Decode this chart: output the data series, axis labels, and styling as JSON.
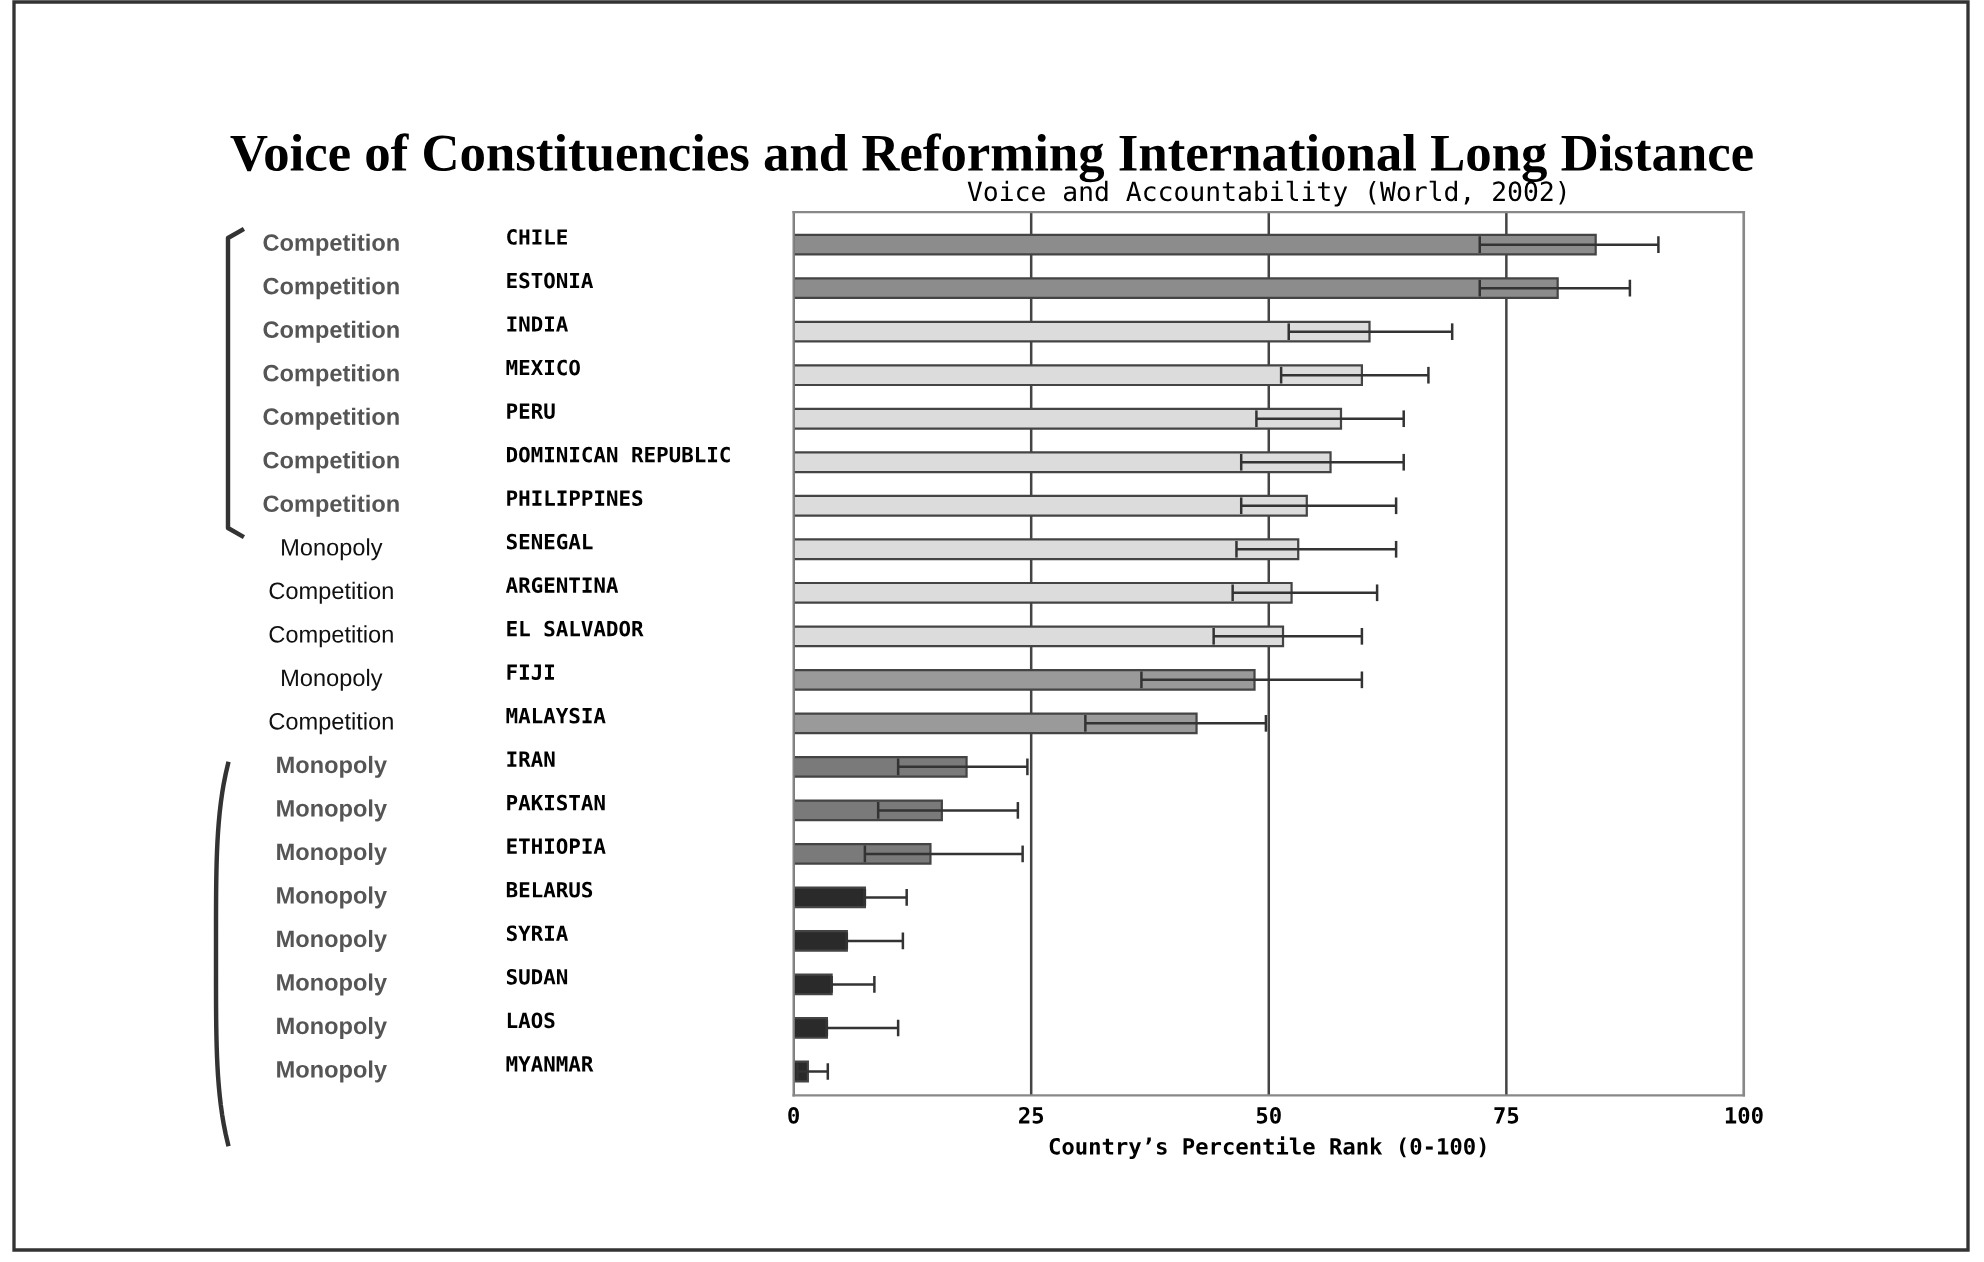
{
  "chart_data": {
    "type": "bar",
    "orientation": "horizontal",
    "title": "Voice of Constituencies and Reforming International Long Distance",
    "subtitle": "Voice and Accountability (World, 2002)",
    "xlabel": "Country’s Percentile Rank (0-100)",
    "categories": [
      "CHILE",
      "ESTONIA",
      "INDIA",
      "MEXICO",
      "PERU",
      "DOMINICAN REPUBLIC",
      "PHILIPPINES",
      "SENEGAL",
      "ARGENTINA",
      "EL SALVADOR",
      "FIJI",
      "MALAYSIA",
      "IRAN",
      "PAKISTAN",
      "ETHIOPIA",
      "BELARUS",
      "SYRIA",
      "SUDAN",
      "LAOS",
      "MYANMAR"
    ],
    "values": [
      84.4,
      80.4,
      60.6,
      59.8,
      57.6,
      56.5,
      54.0,
      53.1,
      52.4,
      51.5,
      48.5,
      42.4,
      18.2,
      15.6,
      14.4,
      7.5,
      5.6,
      4.0,
      3.5,
      1.5
    ],
    "errors": [
      [
        72.2,
        91.0
      ],
      [
        72.2,
        88.0
      ],
      [
        52.1,
        69.3
      ],
      [
        51.3,
        66.8
      ],
      [
        48.7,
        64.2
      ],
      [
        47.1,
        64.2
      ],
      [
        47.1,
        63.4
      ],
      [
        46.6,
        63.4
      ],
      [
        46.2,
        61.4
      ],
      [
        44.2,
        59.8
      ],
      [
        36.6,
        59.8
      ],
      [
        30.7,
        49.7
      ],
      [
        11.0,
        24.6
      ],
      [
        8.9,
        23.6
      ],
      [
        7.5,
        24.1
      ],
      [
        7.5,
        11.9
      ],
      [
        5.6,
        11.5
      ],
      [
        4.0,
        8.5
      ],
      [
        3.5,
        11.0
      ],
      [
        0.4,
        3.6
      ]
    ],
    "colors": [
      "#8c8c8c",
      "#8c8c8c",
      "#dcdcdc",
      "#dcdcdc",
      "#dcdcdc",
      "#dcdcdc",
      "#dcdcdc",
      "#dcdcdc",
      "#dcdcdc",
      "#dcdcdc",
      "#9a9a9a",
      "#9a9a9a",
      "#7a7a7a",
      "#7a7a7a",
      "#7a7a7a",
      "#2a2a2a",
      "#2a2a2a",
      "#2a2a2a",
      "#2a2a2a",
      "#2a2a2a"
    ],
    "xlim": [
      0,
      100
    ],
    "xticks": [
      0,
      25,
      50,
      75,
      100
    ],
    "grid": "x",
    "annotations": [
      "Competition",
      "Competition",
      "Competition",
      "Competition",
      "Competition",
      "Competition",
      "Competition",
      "Monopoly",
      "Competition",
      "Competition",
      "Monopoly",
      "Competition",
      "Monopoly",
      "Monopoly",
      "Monopoly",
      "Monopoly",
      "Monopoly",
      "Monopoly",
      "Monopoly",
      "Monopoly"
    ]
  }
}
